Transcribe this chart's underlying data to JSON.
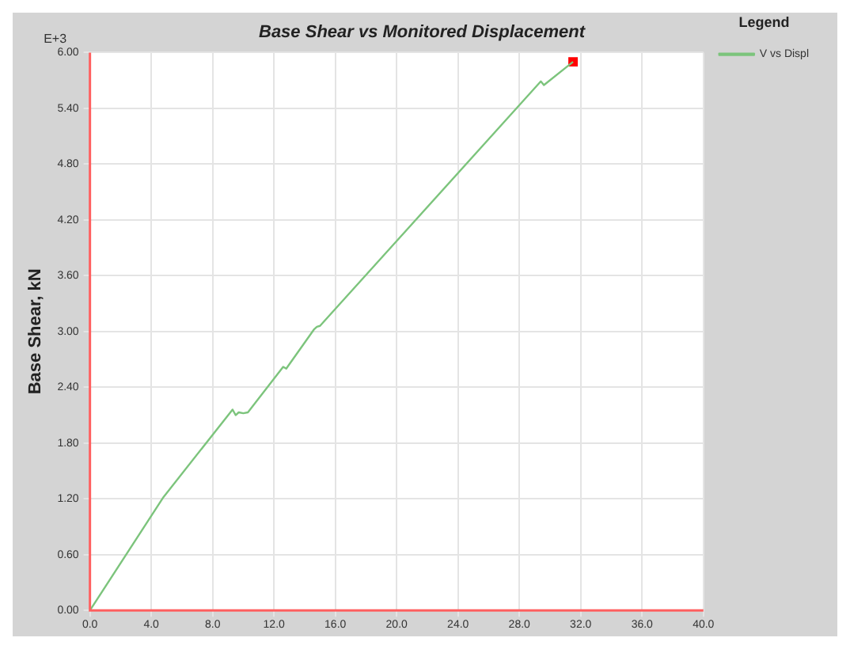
{
  "chart_data": {
    "type": "line",
    "title": "Base Shear vs Monitored Displacement",
    "ylabel": "Base Shear, kN",
    "legend_title": "Legend",
    "annotations": [
      "E+3"
    ],
    "xlim": [
      0,
      40
    ],
    "xticks": [
      {
        "value": 0,
        "label": "0.0"
      },
      {
        "value": 4,
        "label": "4.0"
      },
      {
        "value": 8,
        "label": "8.0"
      },
      {
        "value": 12,
        "label": "12.0"
      },
      {
        "value": 16,
        "label": "16.0"
      },
      {
        "value": 20,
        "label": "20.0"
      },
      {
        "value": 24,
        "label": "24.0"
      },
      {
        "value": 28,
        "label": "28.0"
      },
      {
        "value": 32,
        "label": "32.0"
      },
      {
        "value": 36,
        "label": "36.0"
      },
      {
        "value": 40,
        "label": "40.0"
      }
    ],
    "ylim": [
      0,
      6
    ],
    "yticks": [
      {
        "value": 0,
        "label": "0.00"
      },
      {
        "value": 0.6,
        "label": "0.60"
      },
      {
        "value": 1.2,
        "label": "1.20"
      },
      {
        "value": 1.8,
        "label": "1.80"
      },
      {
        "value": 2.4,
        "label": "2.40"
      },
      {
        "value": 3,
        "label": "3.00"
      },
      {
        "value": 3.6,
        "label": "3.60"
      },
      {
        "value": 4.2,
        "label": "4.20"
      },
      {
        "value": 4.8,
        "label": "4.80"
      },
      {
        "value": 5.4,
        "label": "5.40"
      },
      {
        "value": 6,
        "label": "6.00"
      }
    ],
    "grid": true,
    "legend": "top right",
    "series": [
      {
        "name": "V vs Displ",
        "color": "#7cc47c",
        "x": [
          0,
          4.8,
          9.3,
          9.5,
          9.7,
          10.0,
          10.3,
          12.6,
          12.8,
          14.6,
          14.8,
          15.0,
          29.4,
          29.6,
          31.5
        ],
        "values": [
          0,
          1.22,
          2.16,
          2.1,
          2.13,
          2.12,
          2.13,
          2.62,
          2.6,
          3.02,
          3.05,
          3.06,
          5.69,
          5.65,
          5.9
        ]
      },
      {
        "type": "scatter",
        "color": "#ff0000",
        "x": [
          31.5
        ],
        "values": [
          5.9
        ],
        "marker": "square"
      }
    ]
  }
}
